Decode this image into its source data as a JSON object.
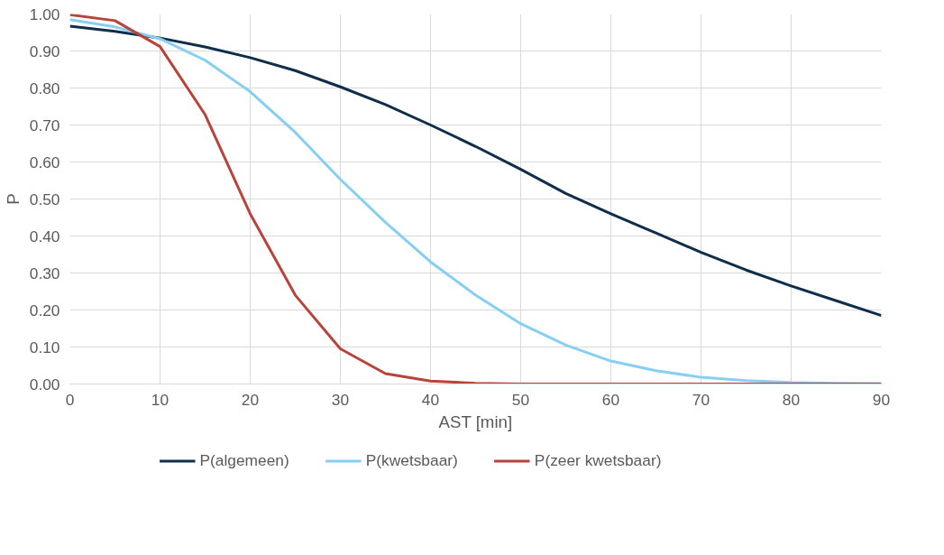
{
  "chart_data": {
    "type": "line",
    "xlabel": "AST [min]",
    "ylabel": "P",
    "x": [
      0,
      5,
      10,
      15,
      20,
      25,
      30,
      35,
      40,
      45,
      50,
      55,
      60,
      65,
      70,
      75,
      80,
      85,
      90
    ],
    "series": [
      {
        "name": "P(algemeen)",
        "color": "#0f2e4b",
        "values": [
          0.967,
          0.953,
          0.935,
          0.911,
          0.882,
          0.847,
          0.803,
          0.755,
          0.7,
          0.642,
          0.58,
          0.515,
          0.46,
          0.408,
          0.356,
          0.308,
          0.265,
          0.225,
          0.185
        ]
      },
      {
        "name": "P(kwetsbaar)",
        "color": "#86cff2",
        "values": [
          0.985,
          0.965,
          0.933,
          0.875,
          0.79,
          0.68,
          0.553,
          0.437,
          0.33,
          0.24,
          0.163,
          0.105,
          0.062,
          0.036,
          0.018,
          0.009,
          0.004,
          0.002,
          0.001
        ]
      },
      {
        "name": "P(zeer kwetsbaar)",
        "color": "#b8433a",
        "values": [
          0.998,
          0.982,
          0.912,
          0.728,
          0.46,
          0.24,
          0.095,
          0.028,
          0.008,
          0.002,
          0,
          0,
          0,
          0,
          0,
          0,
          0,
          0,
          0
        ]
      }
    ],
    "xlim": [
      0,
      90
    ],
    "xticks": [
      0,
      10,
      20,
      30,
      40,
      50,
      60,
      70,
      80,
      90
    ],
    "ylim": [
      0,
      1
    ],
    "yticks": [
      {
        "value": 0,
        "label": "0.00"
      },
      {
        "value": 0.1,
        "label": "0.10"
      },
      {
        "value": 0.2,
        "label": "0.20"
      },
      {
        "value": 0.3,
        "label": "0.30"
      },
      {
        "value": 0.4,
        "label": "0.40"
      },
      {
        "value": 0.5,
        "label": "0.50"
      },
      {
        "value": 0.6,
        "label": "0.60"
      },
      {
        "value": 0.7,
        "label": "0.70"
      },
      {
        "value": 0.8,
        "label": "0.80"
      },
      {
        "value": 0.9,
        "label": "0.90"
      },
      {
        "value": 1,
        "label": "1.00"
      }
    ],
    "grid": true,
    "legend": "bottom",
    "line_style": "solid"
  }
}
